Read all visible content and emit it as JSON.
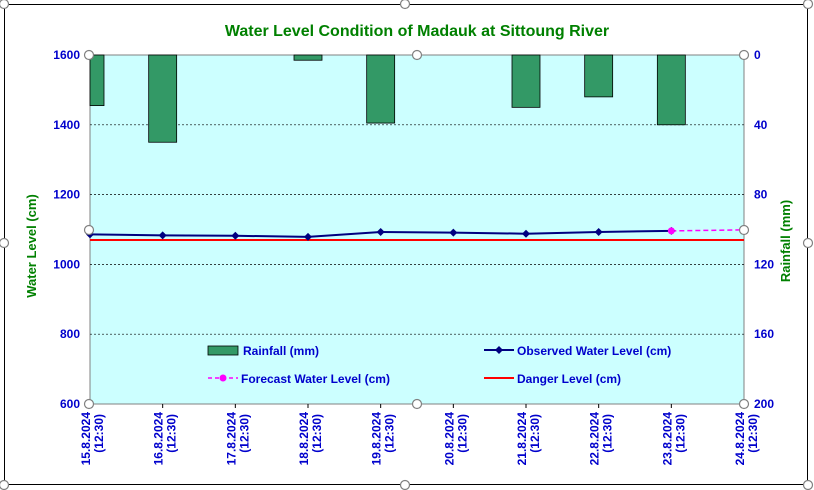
{
  "chart_data": {
    "type": "bar+line",
    "title": "Water Level Condition of Madauk at Sittoung River",
    "ylabel_left": "Water Level (cm)",
    "ylabel_right": "Rainfall (mm)",
    "categories": [
      "15.8.2024",
      "16.8.2024",
      "17.8.2024",
      "18.8.2024",
      "19.8.2024",
      "20.8.2024",
      "21.8.2024",
      "22.8.2024",
      "23.8.2024",
      "24.8.2024"
    ],
    "category_time": "(12:30)",
    "y_left": {
      "min": 600,
      "max": 1600,
      "ticks": [
        "600",
        "800",
        "1000",
        "1200",
        "1400",
        "1600"
      ]
    },
    "y_right": {
      "min": 0,
      "max": 200,
      "reversed": true,
      "ticks": [
        "0",
        "40",
        "80",
        "120",
        "160",
        "200"
      ]
    },
    "grid": true,
    "legend_position": "inside-bottom",
    "legend": {
      "rainfall": "Rainfall (mm)",
      "observed": "Observed Water Level (cm)",
      "forecast": "Forecast Water Level (cm)",
      "danger": "Danger Level (cm)"
    },
    "series": {
      "rainfall": [
        29,
        50,
        0,
        3,
        39,
        0,
        30,
        24,
        40,
        0
      ],
      "observed": [
        1086,
        1083,
        1082,
        1079,
        1093,
        1091,
        1088,
        1093,
        1096,
        null
      ],
      "forecast": [
        null,
        null,
        null,
        null,
        null,
        null,
        null,
        null,
        1096,
        1099
      ],
      "danger": 1070
    },
    "colors": {
      "plot_bg": "#ccffff",
      "bar": "#339966",
      "observed": "#000080",
      "forecast": "#ff00ff",
      "danger": "#ff0000",
      "title": "#008000",
      "axis_text": "#0000cc",
      "axis_title": "#008000"
    }
  }
}
